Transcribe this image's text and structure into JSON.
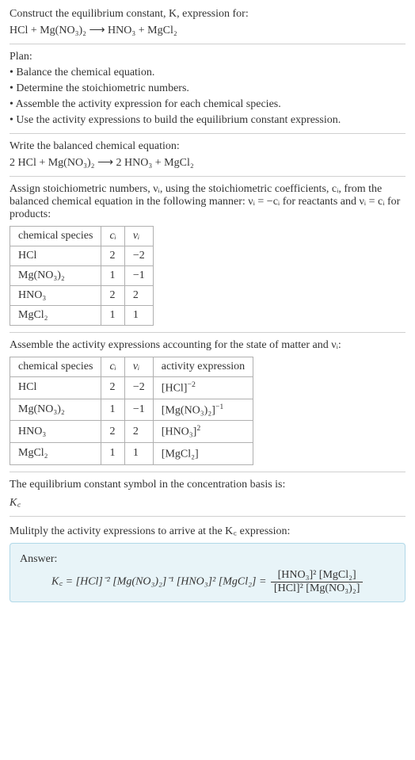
{
  "intro": {
    "line1": "Construct the equilibrium constant, K, expression for:",
    "equation": "HCl + Mg(NO₃)₂  ⟶  HNO₃ + MgCl₂"
  },
  "plan": {
    "heading": "Plan:",
    "items": [
      "• Balance the chemical equation.",
      "• Determine the stoichiometric numbers.",
      "• Assemble the activity expression for each chemical species.",
      "• Use the activity expressions to build the equilibrium constant expression."
    ]
  },
  "balanced": {
    "line1": "Write the balanced chemical equation:",
    "equation": "2 HCl + Mg(NO₃)₂  ⟶  2 HNO₃ + MgCl₂"
  },
  "stoich_intro_a": "Assign stoichiometric numbers, νᵢ, using the stoichiometric coefficients, cᵢ, from the balanced chemical equation in the following manner: νᵢ = −cᵢ for reactants and νᵢ = cᵢ for products:",
  "stoich_table": {
    "header": [
      "chemical species",
      "cᵢ",
      "νᵢ"
    ],
    "rows": [
      [
        "HCl",
        "2",
        "−2"
      ],
      [
        "Mg(NO₃)₂",
        "1",
        "−1"
      ],
      [
        "HNO₃",
        "2",
        "2"
      ],
      [
        "MgCl₂",
        "1",
        "1"
      ]
    ]
  },
  "activity_intro": "Assemble the activity expressions accounting for the state of matter and νᵢ:",
  "activity_table": {
    "header": [
      "chemical species",
      "cᵢ",
      "νᵢ",
      "activity expression"
    ],
    "rows": [
      {
        "species": "HCl",
        "ci": "2",
        "vi": "−2",
        "expr_base": "[HCl]",
        "expr_sup": "−2"
      },
      {
        "species": "Mg(NO₃)₂",
        "ci": "1",
        "vi": "−1",
        "expr_base": "[Mg(NO₃)₂]",
        "expr_sup": "−1"
      },
      {
        "species": "HNO₃",
        "ci": "2",
        "vi": "2",
        "expr_base": "[HNO₃]",
        "expr_sup": "2"
      },
      {
        "species": "MgCl₂",
        "ci": "1",
        "vi": "1",
        "expr_base": "[MgCl₂]",
        "expr_sup": ""
      }
    ]
  },
  "eq_symbol": {
    "line1": "The equilibrium constant symbol in the concentration basis is:",
    "symbol": "K꜀"
  },
  "multiply": "Mulitply the activity expressions to arrive at the K꜀ expression:",
  "answer": {
    "label": "Answer:",
    "lhs": "K꜀ = [HCl]⁻² [Mg(NO₃)₂]⁻¹ [HNO₃]² [MgCl₂] = ",
    "num": "[HNO₃]² [MgCl₂]",
    "den": "[HCl]² [Mg(NO₃)₂]"
  },
  "colors": {
    "text": "#333333",
    "border": "#b0b0b0",
    "hr": "#d0d0d0",
    "answer_bg": "#e8f4f8",
    "answer_border": "#b0d8e8",
    "background": "#ffffff"
  }
}
